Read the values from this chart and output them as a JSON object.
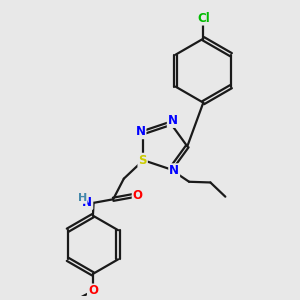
{
  "bg_color": "#e8e8e8",
  "bond_color": "#1a1a1a",
  "bond_width": 1.6,
  "atom_colors": {
    "N": "#0000ff",
    "S": "#cccc00",
    "O": "#ff0000",
    "Cl": "#00bb00",
    "C": "#1a1a1a",
    "H": "#4488aa"
  },
  "font_size": 8.5,
  "figsize": [
    3.0,
    3.0
  ],
  "dpi": 100
}
